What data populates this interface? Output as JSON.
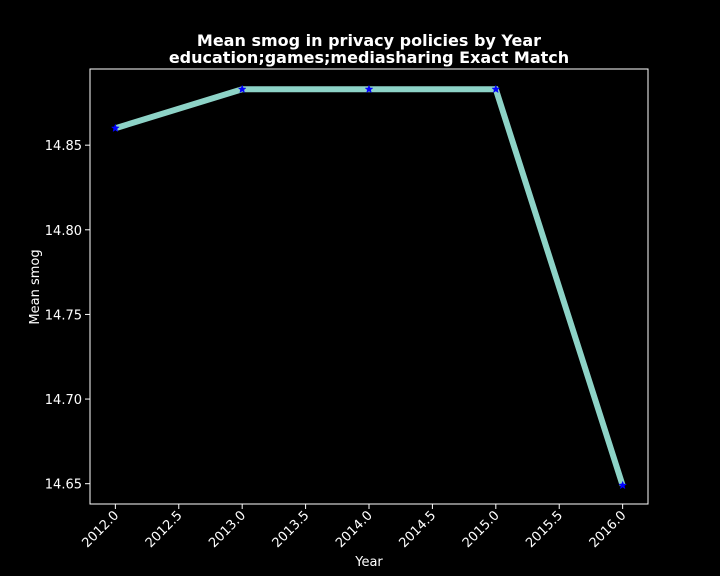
{
  "chart_data": {
    "type": "line",
    "title_line1": "Mean smog in privacy policies by Year",
    "title_line2": "education;games;mediasharing Exact Match",
    "xlabel": "Year",
    "ylabel": "Mean smog",
    "x": [
      2012,
      2013,
      2014,
      2015,
      2016
    ],
    "series": [
      {
        "values": [
          14.86,
          14.883,
          14.883,
          14.883,
          14.649
        ]
      }
    ],
    "xlim": [
      2011.8,
      2016.2
    ],
    "ylim": [
      14.638,
      14.895
    ],
    "xticks": [
      2012.0,
      2012.5,
      2013.0,
      2013.5,
      2014.0,
      2014.5,
      2015.0,
      2015.5,
      2016.0
    ],
    "xtick_labels": [
      "2012.0",
      "2012.5",
      "2013.0",
      "2013.5",
      "2014.0",
      "2014.5",
      "2015.0",
      "2015.5",
      "2016.0"
    ],
    "yticks": [
      14.65,
      14.7,
      14.75,
      14.8,
      14.85
    ],
    "ytick_labels": [
      "14.65",
      "14.70",
      "14.75",
      "14.80",
      "14.85"
    ],
    "grid": false,
    "line_color": "#8dd3c7",
    "marker_color": "#0000ff",
    "marker": "star",
    "background": "#000000",
    "text_color": "#ffffff"
  }
}
